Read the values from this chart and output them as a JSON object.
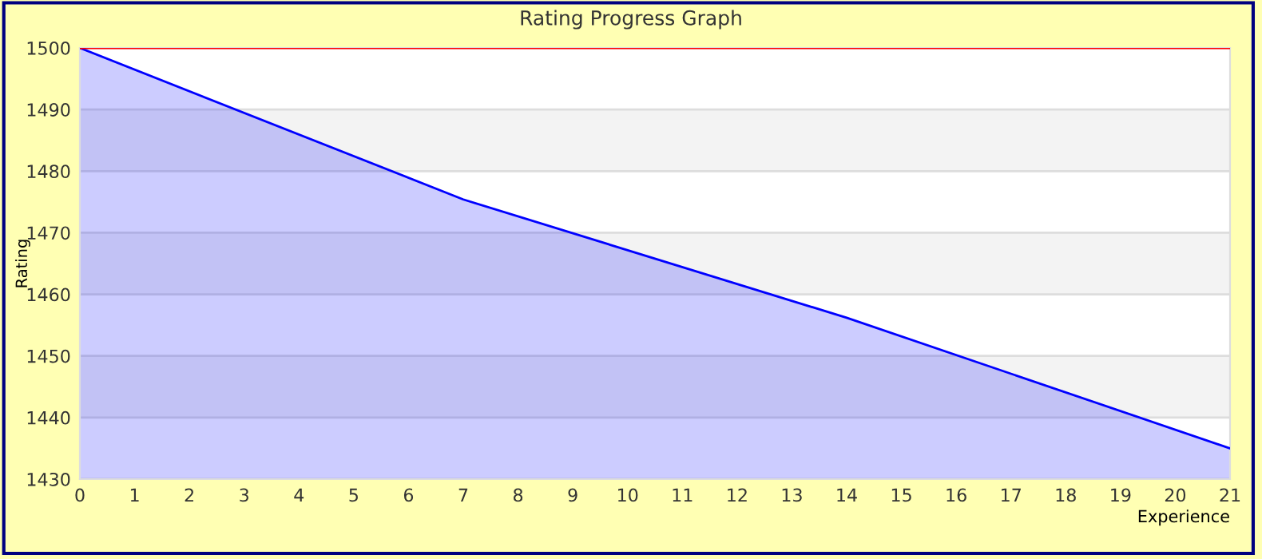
{
  "chart_data": {
    "type": "area",
    "title": "Rating Progress Graph",
    "xlabel": "Experience",
    "ylabel": "Rating",
    "x": [
      0,
      7,
      14,
      21
    ],
    "series": [
      {
        "color": "#0000ff",
        "values": [
          1500,
          1475.4,
          1456.2,
          1435
        ]
      }
    ],
    "xlim": [
      0,
      21
    ],
    "xticks": [
      0,
      1,
      2,
      3,
      4,
      5,
      6,
      7,
      8,
      9,
      10,
      11,
      12,
      13,
      14,
      15,
      16,
      17,
      18,
      19,
      20,
      21
    ],
    "ylim": [
      1430,
      1500
    ],
    "yticks": [
      1430,
      1440,
      1450,
      1460,
      1470,
      1480,
      1490,
      1500
    ],
    "grid": "y",
    "ref_lines": [
      {
        "axis": "y",
        "value": 1500,
        "color": "#ff0000"
      }
    ]
  }
}
